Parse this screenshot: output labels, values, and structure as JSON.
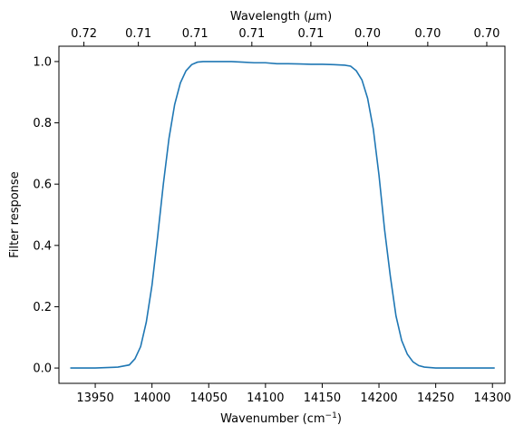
{
  "chart_data": {
    "type": "line",
    "xlabel": "Wavenumber (cm",
    "xlabel_sup": "−1",
    "xlabel_end": ")",
    "ylabel": "Filter response",
    "top_xlabel": "Wavelength (",
    "top_xlabel_unit": "μ",
    "top_xlabel_end": "m)",
    "xlim": [
      13918,
      14311
    ],
    "ylim": [
      -0.05,
      1.05
    ],
    "x_ticks": [
      13950,
      14000,
      14050,
      14100,
      14150,
      14200,
      14250,
      14300
    ],
    "x_tick_labels": [
      "13950",
      "14000",
      "14050",
      "14100",
      "14150",
      "14200",
      "14250",
      "14300"
    ],
    "y_ticks": [
      0.0,
      0.2,
      0.4,
      0.6,
      0.8,
      1.0
    ],
    "y_tick_labels": [
      "0.0",
      "0.2",
      "0.4",
      "0.6",
      "0.8",
      "1.0"
    ],
    "top_ticks": [
      13940,
      13988,
      14038,
      14088,
      14140,
      14190,
      14243,
      14295
    ],
    "top_tick_labels": [
      "0.72",
      "0.71",
      "0.71",
      "0.71",
      "0.71",
      "0.70",
      "0.70",
      "0.70"
    ],
    "line_color": "#1f77b4",
    "grid": false,
    "series": [
      {
        "x": [
          13928,
          13950,
          13970,
          13980,
          13985,
          13990,
          13995,
          14000,
          14005,
          14010,
          14015,
          14020,
          14025,
          14030,
          14035,
          14040,
          14045,
          14050,
          14060,
          14070,
          14080,
          14090,
          14100,
          14110,
          14120,
          14130,
          14140,
          14150,
          14160,
          14170,
          14175,
          14180,
          14185,
          14190,
          14195,
          14200,
          14205,
          14210,
          14215,
          14220,
          14225,
          14230,
          14235,
          14240,
          14250,
          14260,
          14280,
          14302
        ],
        "y": [
          0.0,
          0.0,
          0.003,
          0.01,
          0.03,
          0.07,
          0.15,
          0.27,
          0.43,
          0.6,
          0.75,
          0.86,
          0.93,
          0.97,
          0.99,
          0.998,
          1.0,
          1.0,
          1.0,
          1.0,
          0.998,
          0.996,
          0.996,
          0.993,
          0.993,
          0.992,
          0.991,
          0.991,
          0.99,
          0.988,
          0.985,
          0.97,
          0.94,
          0.88,
          0.78,
          0.63,
          0.45,
          0.3,
          0.17,
          0.09,
          0.045,
          0.02,
          0.008,
          0.003,
          0.0,
          0.0,
          0.0,
          0.0
        ]
      }
    ]
  }
}
